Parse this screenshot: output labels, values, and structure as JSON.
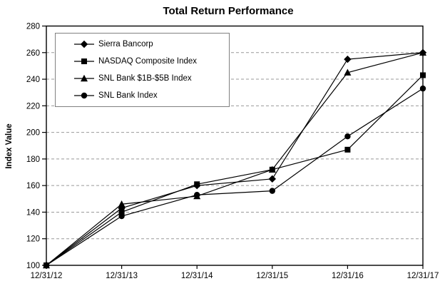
{
  "chart_data": {
    "type": "line",
    "title": "Total Return Performance",
    "ylabel": "Index Value",
    "xlabel": "",
    "categories": [
      "12/31/12",
      "12/31/13",
      "12/31/14",
      "12/31/15",
      "12/31/16",
      "12/31/17"
    ],
    "series": [
      {
        "name": "Sierra Bancorp",
        "marker": "diamond",
        "color": "#000000",
        "values": [
          100,
          143,
          160,
          165,
          255,
          260
        ]
      },
      {
        "name": "NASDAQ Composite Index",
        "marker": "square",
        "color": "#000000",
        "values": [
          100,
          140,
          161,
          172,
          187,
          243
        ]
      },
      {
        "name": "SNL Bank $1B-$5B Index",
        "marker": "triangle",
        "color": "#000000",
        "values": [
          100,
          146,
          152,
          172,
          245,
          260
        ]
      },
      {
        "name": "SNL Bank Index",
        "marker": "circle",
        "color": "#000000",
        "values": [
          100,
          137,
          153,
          156,
          197,
          233
        ]
      }
    ],
    "ylim": [
      100,
      280
    ],
    "yticks": [
      100,
      120,
      140,
      160,
      180,
      200,
      220,
      240,
      260,
      280
    ],
    "grid": "horizontal-dashed",
    "grid_color": "#999999",
    "axis_color": "#000000",
    "line_color": "#000000",
    "legend_position": "top-left-inside",
    "legend_border_color": "#808080"
  }
}
